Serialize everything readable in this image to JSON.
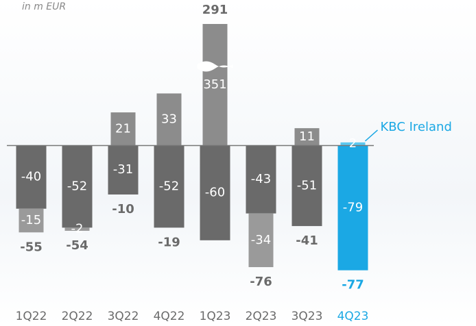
{
  "chart_data": {
    "type": "bar",
    "subtitle": "in m EUR",
    "categories": [
      "1Q22",
      "2Q22",
      "3Q22",
      "4Q22",
      "1Q23",
      "2Q23",
      "3Q23",
      "4Q23"
    ],
    "series": [
      {
        "values": [
          -40,
          -52,
          -31,
          -52,
          -60,
          -43,
          -51,
          -79
        ],
        "colors": [
          "#6a6a6a",
          "#6a6a6a",
          "#6a6a6a",
          "#6a6a6a",
          "#6a6a6a",
          "#6a6a6a",
          "#6a6a6a",
          "#1ba8e4"
        ]
      },
      {
        "values": [
          -15,
          -2,
          21,
          33,
          351,
          -34,
          11,
          2
        ],
        "colors": [
          "#9a9a9a",
          "#9a9a9a",
          "#8c8c8c",
          "#8c8c8c",
          "#8c8c8c",
          "#9a9a9a",
          "#8c8c8c",
          "#5cc8f0"
        ]
      }
    ],
    "totals": [
      -55,
      -54,
      -10,
      -19,
      291,
      -76,
      -41,
      -77
    ],
    "total_colors": [
      "#6a6a6a",
      "#6a6a6a",
      "#6a6a6a",
      "#6a6a6a",
      "#6a6a6a",
      "#6a6a6a",
      "#6a6a6a",
      "#1ba8e4"
    ],
    "annotation": "KBC Ireland",
    "ylim": [
      -90,
      77
    ],
    "axis_break": true
  }
}
